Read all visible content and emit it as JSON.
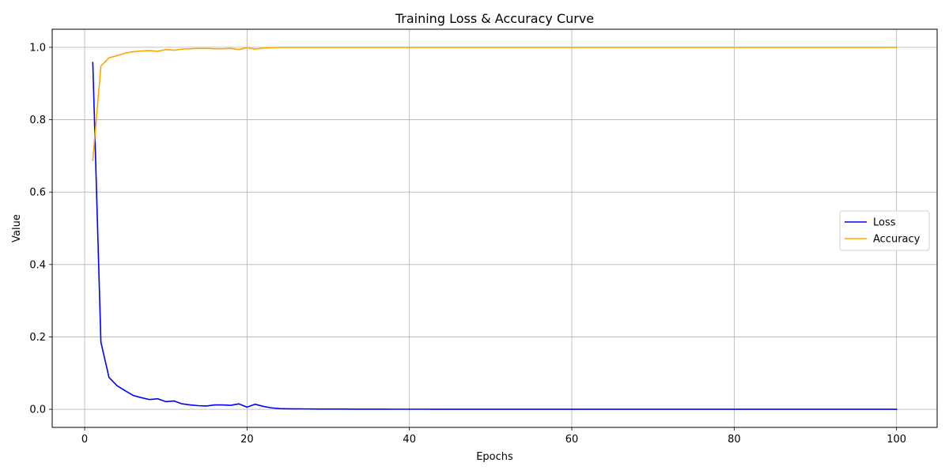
{
  "chart_data": {
    "type": "line",
    "title": "Training Loss & Accuracy Curve",
    "xlabel": "Epochs",
    "ylabel": "Value",
    "xlim": [
      -4,
      105
    ],
    "ylim": [
      -0.05,
      1.05
    ],
    "xticks": [
      0,
      20,
      40,
      60,
      80,
      100
    ],
    "xtick_labels": [
      "0",
      "20",
      "40",
      "60",
      "80",
      "100"
    ],
    "yticks": [
      0.0,
      0.2,
      0.4,
      0.6,
      0.8,
      1.0
    ],
    "ytick_labels": [
      "0.0",
      "0.2",
      "0.4",
      "0.6",
      "0.8",
      "1.0"
    ],
    "grid": true,
    "legend_position": "center-right",
    "series": [
      {
        "name": "Loss",
        "color": "#0000ff",
        "x": [
          1,
          2,
          3,
          4,
          5,
          6,
          7,
          8,
          9,
          10,
          11,
          12,
          13,
          14,
          15,
          16,
          17,
          18,
          19,
          20,
          21,
          22,
          23,
          24,
          25,
          26,
          27,
          28,
          29,
          30,
          31,
          32,
          33,
          34,
          35,
          36,
          37,
          38,
          39,
          40,
          41,
          42,
          43,
          44,
          45,
          46,
          47,
          48,
          49,
          50,
          51,
          52,
          53,
          54,
          55,
          56,
          57,
          58,
          59,
          60,
          61,
          62,
          63,
          64,
          65,
          66,
          67,
          68,
          69,
          70,
          71,
          72,
          73,
          74,
          75,
          76,
          77,
          78,
          79,
          80,
          81,
          82,
          83,
          84,
          85,
          86,
          87,
          88,
          89,
          90,
          91,
          92,
          93,
          94,
          95,
          96,
          97,
          98,
          99,
          100
        ],
        "values": [
          0.958,
          0.185,
          0.088,
          0.065,
          0.051,
          0.038,
          0.032,
          0.027,
          0.029,
          0.021,
          0.023,
          0.015,
          0.012,
          0.01,
          0.009,
          0.012,
          0.012,
          0.011,
          0.015,
          0.006,
          0.014,
          0.008,
          0.004,
          0.002,
          0.0015,
          0.0012,
          0.001,
          0.0008,
          0.0007,
          0.0006,
          0.0005,
          0.0005,
          0.0004,
          0.0004,
          0.0003,
          0.0003,
          0.0003,
          0.0002,
          0.0002,
          0.0002,
          0.0002,
          0.0002,
          0.0001,
          0.0001,
          0.0001,
          0.0001,
          0.0001,
          0.0001,
          0.0001,
          0.0001,
          0.0001,
          0.0001,
          0.0001,
          0.0001,
          0.0001,
          0.0001,
          0.0001,
          0.0001,
          0.0001,
          0.0001,
          0.0001,
          0.0001,
          0.0001,
          0.0001,
          0.0001,
          0.0001,
          0.0001,
          0.0001,
          0.0001,
          0.0001,
          0.0001,
          0.0001,
          0.0001,
          0.0001,
          0.0001,
          0.0001,
          0.0001,
          0.0001,
          0.0001,
          0.0001,
          0.0001,
          0.0001,
          0.0001,
          0.0001,
          0.0001,
          0.0001,
          0.0001,
          0.0001,
          0.0001,
          0.0001,
          0.0001,
          0.0001,
          0.0001,
          0.0001,
          0.0001,
          0.0001,
          0.0001,
          0.0001,
          0.0001,
          0.0001
        ]
      },
      {
        "name": "Accuracy",
        "color": "#ffa500",
        "x": [
          1,
          2,
          3,
          4,
          5,
          6,
          7,
          8,
          9,
          10,
          11,
          12,
          13,
          14,
          15,
          16,
          17,
          18,
          19,
          20,
          21,
          22,
          23,
          24,
          25,
          26,
          27,
          28,
          29,
          30,
          31,
          32,
          33,
          34,
          35,
          36,
          37,
          38,
          39,
          40,
          41,
          42,
          43,
          44,
          45,
          46,
          47,
          48,
          49,
          50,
          51,
          52,
          53,
          54,
          55,
          56,
          57,
          58,
          59,
          60,
          61,
          62,
          63,
          64,
          65,
          66,
          67,
          68,
          69,
          70,
          71,
          72,
          73,
          74,
          75,
          76,
          77,
          78,
          79,
          80,
          81,
          82,
          83,
          84,
          85,
          86,
          87,
          88,
          89,
          90,
          91,
          92,
          93,
          94,
          95,
          96,
          97,
          98,
          99,
          100
        ],
        "values": [
          0.688,
          0.948,
          0.971,
          0.977,
          0.984,
          0.988,
          0.99,
          0.991,
          0.989,
          0.994,
          0.992,
          0.995,
          0.996,
          0.997,
          0.997,
          0.996,
          0.996,
          0.997,
          0.994,
          0.999,
          0.995,
          0.998,
          0.999,
          1.0,
          1.0,
          1.0,
          1.0,
          1.0,
          1.0,
          1.0,
          1.0,
          1.0,
          1.0,
          1.0,
          1.0,
          1.0,
          1.0,
          1.0,
          1.0,
          1.0,
          1.0,
          1.0,
          1.0,
          1.0,
          1.0,
          1.0,
          1.0,
          1.0,
          1.0,
          1.0,
          1.0,
          1.0,
          1.0,
          1.0,
          1.0,
          1.0,
          1.0,
          1.0,
          1.0,
          1.0,
          1.0,
          1.0,
          1.0,
          1.0,
          1.0,
          1.0,
          1.0,
          1.0,
          1.0,
          1.0,
          1.0,
          1.0,
          1.0,
          1.0,
          1.0,
          1.0,
          1.0,
          1.0,
          1.0,
          1.0,
          1.0,
          1.0,
          1.0,
          1.0,
          1.0,
          1.0,
          1.0,
          1.0,
          1.0,
          1.0,
          1.0,
          1.0,
          1.0,
          1.0,
          1.0,
          1.0,
          1.0,
          1.0,
          1.0,
          1.0
        ]
      }
    ]
  }
}
